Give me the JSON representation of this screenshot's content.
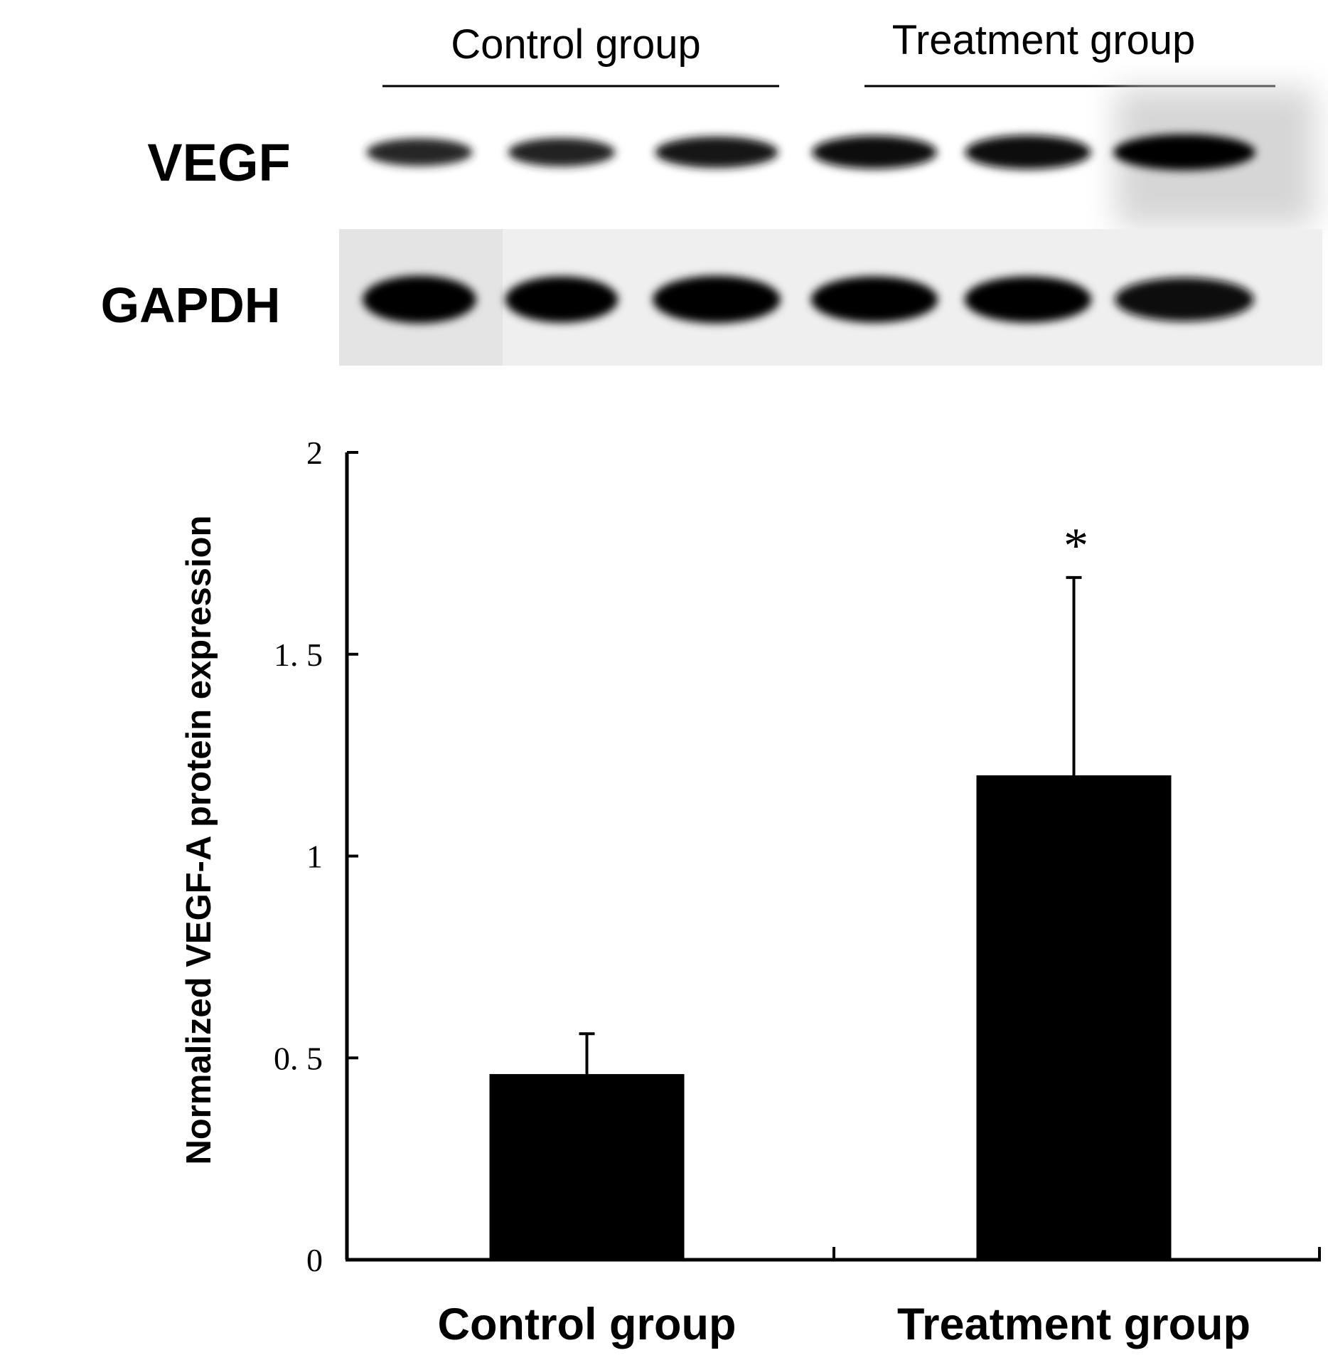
{
  "blot": {
    "group_labels": [
      "Control group",
      "Treatment group"
    ],
    "row_labels": [
      "VEGF",
      "GAPDH"
    ],
    "lanes_per_group": 3,
    "band_intensity": {
      "VEGF": [
        0.55,
        0.6,
        0.75,
        0.85,
        0.9,
        1.0
      ],
      "GAPDH": [
        1.0,
        0.95,
        1.0,
        0.95,
        0.95,
        0.85
      ]
    }
  },
  "chart_data": {
    "type": "bar",
    "categories": [
      "Control group",
      "Treatment group"
    ],
    "values": [
      0.46,
      1.2
    ],
    "error_upper": [
      0.56,
      1.69
    ],
    "annotations": [
      "",
      "*"
    ],
    "ylabel": "Normalized VEGF-A protein expression",
    "xlabel": "",
    "ylim": [
      0,
      2
    ],
    "yticks": [
      0,
      0.5,
      1,
      1.5,
      2
    ],
    "ytick_labels": [
      "0",
      "0. 5",
      "1",
      "1. 5",
      "2"
    ],
    "grid": false,
    "legend": "none",
    "bar_color": "#000000"
  }
}
